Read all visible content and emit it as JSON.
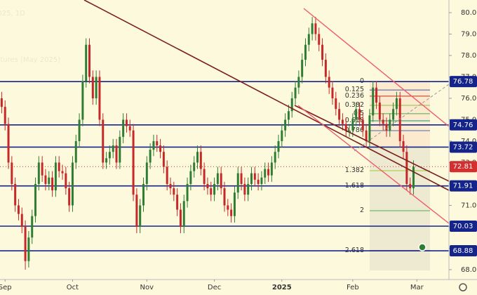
{
  "chart_data": {
    "type": "candlestick",
    "watermark": [
      "2025, 1D",
      "utures (May 2025)"
    ],
    "xlim": [
      -0.5,
      132.5
    ],
    "ylim": [
      67.57,
      80.59
    ],
    "xticks": [
      {
        "value": 1,
        "label": "Sep"
      },
      {
        "value": 21,
        "label": "Oct"
      },
      {
        "value": 43,
        "label": "Nov"
      },
      {
        "value": 63,
        "label": "Dec"
      },
      {
        "value": 83,
        "label": "2025"
      },
      {
        "value": 104,
        "label": "Feb"
      },
      {
        "value": 123,
        "label": "Mar"
      }
    ],
    "yticks": [
      {
        "value": 68,
        "label": "68.00"
      },
      {
        "value": 69,
        "label": "69.00"
      },
      {
        "value": 70,
        "label": "70.00"
      },
      {
        "value": 71,
        "label": "71.00"
      },
      {
        "value": 72,
        "label": "72.00"
      },
      {
        "value": 73,
        "label": "73.00"
      },
      {
        "value": 74,
        "label": "74.00"
      },
      {
        "value": 75,
        "label": "75.00"
      },
      {
        "value": 76,
        "label": "76.00"
      },
      {
        "value": 77,
        "label": "77.00"
      },
      {
        "value": 78,
        "label": "78.00"
      },
      {
        "value": 79,
        "label": "79.00"
      },
      {
        "value": 80,
        "label": "80.00"
      }
    ],
    "up_color": "#2e7d32",
    "down_color": "#c62828",
    "levels": [
      76.78,
      74.76,
      73.72,
      71.91,
      70.03,
      68.88
    ],
    "level_color": "#14248a",
    "last_price": 72.81,
    "last_price_color": "#d32f2f",
    "fib_levels": [
      {
        "label": "0",
        "value": 76.79,
        "color": "#888888"
      },
      {
        "label": "0.125",
        "value": 76.39,
        "color": "#3f51b5"
      },
      {
        "label": "0.236",
        "value": 76.1,
        "color": "#c62828"
      },
      {
        "label": "0.382",
        "value": 75.67,
        "color": "#8bc34a"
      },
      {
        "label": "0.5",
        "value": 75.28,
        "color": "#4caf50"
      },
      {
        "label": "0.618",
        "value": 74.95,
        "color": "#009688"
      },
      {
        "label": "0.786",
        "value": 74.49,
        "color": "#3f6fb5"
      },
      {
        "label": "1.382",
        "value": 72.62,
        "color": "#9ccc3a"
      },
      {
        "label": "1.618",
        "value": 71.9,
        "color": "#3f51b5"
      },
      {
        "label": "2",
        "value": 70.75,
        "color": "#4caf50"
      },
      {
        "label": "2.618",
        "value": 68.89,
        "color": "#c62828"
      }
    ],
    "candles": [
      [
        76.0,
        76.3,
        75.3,
        75.6
      ],
      [
        75.6,
        75.9,
        74.5,
        74.8
      ],
      [
        74.8,
        75.1,
        72.7,
        73.0
      ],
      [
        73.0,
        73.3,
        71.7,
        72.0
      ],
      [
        72.0,
        72.3,
        70.7,
        71.0
      ],
      [
        71.0,
        71.3,
        70.3,
        70.6
      ],
      [
        70.6,
        70.9,
        69.7,
        70.0
      ],
      [
        70.0,
        70.3,
        68.0,
        68.4
      ],
      [
        68.4,
        69.8,
        68.1,
        69.5
      ],
      [
        69.5,
        70.8,
        69.2,
        70.5
      ],
      [
        70.5,
        72.3,
        70.2,
        72.0
      ],
      [
        72.0,
        73.3,
        71.7,
        73.0
      ],
      [
        73.0,
        73.3,
        72.1,
        72.4
      ],
      [
        72.4,
        72.7,
        71.7,
        72.0
      ],
      [
        72.0,
        72.6,
        71.7,
        72.3
      ],
      [
        72.3,
        72.6,
        71.4,
        71.7
      ],
      [
        71.7,
        73.3,
        71.4,
        73.0
      ],
      [
        73.0,
        73.3,
        72.3,
        72.6
      ],
      [
        72.6,
        72.9,
        72.2,
        72.5
      ],
      [
        72.5,
        72.8,
        71.5,
        71.8
      ],
      [
        71.8,
        72.1,
        70.7,
        71.0
      ],
      [
        71.0,
        73.3,
        70.7,
        73.0
      ],
      [
        73.0,
        74.3,
        72.7,
        74.0
      ],
      [
        74.0,
        75.3,
        73.7,
        75.0
      ],
      [
        75.0,
        77.1,
        74.7,
        76.8
      ],
      [
        76.8,
        78.8,
        76.5,
        78.5
      ],
      [
        78.5,
        78.8,
        76.7,
        77.0
      ],
      [
        77.0,
        77.3,
        75.7,
        76.0
      ],
      [
        76.0,
        77.3,
        75.7,
        77.0
      ],
      [
        77.0,
        77.3,
        74.7,
        75.0
      ],
      [
        75.0,
        75.3,
        72.7,
        73.0
      ],
      [
        73.0,
        73.5,
        72.7,
        73.2
      ],
      [
        73.2,
        73.8,
        72.9,
        73.5
      ],
      [
        73.5,
        74.1,
        73.2,
        73.8
      ],
      [
        73.8,
        74.1,
        72.7,
        73.0
      ],
      [
        73.0,
        74.5,
        72.7,
        74.2
      ],
      [
        74.2,
        75.3,
        73.9,
        75.0
      ],
      [
        75.0,
        75.3,
        74.4,
        74.7
      ],
      [
        74.7,
        75.0,
        74.2,
        74.5
      ],
      [
        74.5,
        74.8,
        71.2,
        71.5
      ],
      [
        71.5,
        71.8,
        69.7,
        70.0
      ],
      [
        70.0,
        71.3,
        69.7,
        71.0
      ],
      [
        71.0,
        72.3,
        70.7,
        72.0
      ],
      [
        72.0,
        73.3,
        71.7,
        73.0
      ],
      [
        73.0,
        73.9,
        72.7,
        73.6
      ],
      [
        73.6,
        74.3,
        73.3,
        74.0
      ],
      [
        74.0,
        74.3,
        73.5,
        73.8
      ],
      [
        73.8,
        74.1,
        73.2,
        73.5
      ],
      [
        73.5,
        73.8,
        72.5,
        72.8
      ],
      [
        72.8,
        73.1,
        71.7,
        72.0
      ],
      [
        72.0,
        72.3,
        71.5,
        71.8
      ],
      [
        71.8,
        72.1,
        71.2,
        71.5
      ],
      [
        71.5,
        71.8,
        70.5,
        70.8
      ],
      [
        70.8,
        71.1,
        69.7,
        70.0
      ],
      [
        70.0,
        71.5,
        69.7,
        71.2
      ],
      [
        71.2,
        72.3,
        70.9,
        72.0
      ],
      [
        72.0,
        72.9,
        71.7,
        72.6
      ],
      [
        72.6,
        73.3,
        72.3,
        73.0
      ],
      [
        73.0,
        73.8,
        72.7,
        73.5
      ],
      [
        73.5,
        73.8,
        72.4,
        72.7
      ],
      [
        72.7,
        73.0,
        71.7,
        72.0
      ],
      [
        72.0,
        72.3,
        71.5,
        71.8
      ],
      [
        71.8,
        72.1,
        71.2,
        71.5
      ],
      [
        71.5,
        72.3,
        71.2,
        72.0
      ],
      [
        72.0,
        72.8,
        71.7,
        72.5
      ],
      [
        72.5,
        72.8,
        71.5,
        71.8
      ],
      [
        71.8,
        72.1,
        70.7,
        71.0
      ],
      [
        71.0,
        71.3,
        70.5,
        70.8
      ],
      [
        70.8,
        71.1,
        70.2,
        70.5
      ],
      [
        70.5,
        71.9,
        70.2,
        71.6
      ],
      [
        71.6,
        72.8,
        71.3,
        72.5
      ],
      [
        72.5,
        72.8,
        71.7,
        72.0
      ],
      [
        72.0,
        72.3,
        71.2,
        71.5
      ],
      [
        71.5,
        72.3,
        71.2,
        72.0
      ],
      [
        72.0,
        72.8,
        71.7,
        72.5
      ],
      [
        72.5,
        72.8,
        71.9,
        72.2
      ],
      [
        72.2,
        72.5,
        71.7,
        72.0
      ],
      [
        72.0,
        72.6,
        71.7,
        72.3
      ],
      [
        72.3,
        73.0,
        72.0,
        72.7
      ],
      [
        72.7,
        73.0,
        72.1,
        72.4
      ],
      [
        72.4,
        73.3,
        72.1,
        73.0
      ],
      [
        73.0,
        73.8,
        72.7,
        73.5
      ],
      [
        73.5,
        74.3,
        73.2,
        74.0
      ],
      [
        74.0,
        74.8,
        73.7,
        74.5
      ],
      [
        74.5,
        75.3,
        74.2,
        75.0
      ],
      [
        75.0,
        75.7,
        74.7,
        75.4
      ],
      [
        75.4,
        76.3,
        75.1,
        76.0
      ],
      [
        76.0,
        76.8,
        75.7,
        76.5
      ],
      [
        76.5,
        77.3,
        76.2,
        77.0
      ],
      [
        77.0,
        78.1,
        76.7,
        77.8
      ],
      [
        77.8,
        78.8,
        77.5,
        78.5
      ],
      [
        78.5,
        79.3,
        78.2,
        79.0
      ],
      [
        79.0,
        79.8,
        78.7,
        79.5
      ],
      [
        79.5,
        79.8,
        78.7,
        79.0
      ],
      [
        79.0,
        79.3,
        78.2,
        78.5
      ],
      [
        78.5,
        78.8,
        77.5,
        77.8
      ],
      [
        77.8,
        78.1,
        76.7,
        77.0
      ],
      [
        77.0,
        77.3,
        76.2,
        76.5
      ],
      [
        76.5,
        76.8,
        75.7,
        76.0
      ],
      [
        76.0,
        76.3,
        75.2,
        75.5
      ],
      [
        75.5,
        75.8,
        74.7,
        75.0
      ],
      [
        75.0,
        75.3,
        74.5,
        74.8
      ],
      [
        74.8,
        75.1,
        74.2,
        74.5
      ],
      [
        74.5,
        74.8,
        74.2,
        74.5
      ],
      [
        74.5,
        75.3,
        74.2,
        75.0
      ],
      [
        75.0,
        75.8,
        74.7,
        75.5
      ],
      [
        75.5,
        75.8,
        74.7,
        75.0
      ],
      [
        75.0,
        75.3,
        74.2,
        74.5
      ],
      [
        74.5,
        74.8,
        73.7,
        74.0
      ],
      [
        74.0,
        75.5,
        73.7,
        75.2
      ],
      [
        75.2,
        76.8,
        74.9,
        76.5
      ],
      [
        76.5,
        76.8,
        75.5,
        75.8
      ],
      [
        75.8,
        76.1,
        74.7,
        75.0
      ],
      [
        75.0,
        75.3,
        74.5,
        74.8
      ],
      [
        74.8,
        75.1,
        74.2,
        74.5
      ],
      [
        74.5,
        75.3,
        74.2,
        75.0
      ],
      [
        75.0,
        75.8,
        74.7,
        75.5
      ],
      [
        75.5,
        76.3,
        75.2,
        76.0
      ],
      [
        76.0,
        76.3,
        73.7,
        74.0
      ],
      [
        74.0,
        74.3,
        73.2,
        73.5
      ],
      [
        73.5,
        73.8,
        71.7,
        72.0
      ],
      [
        72.0,
        72.3,
        71.5,
        71.8
      ],
      [
        71.8,
        73.1,
        71.5,
        72.81
      ]
    ]
  }
}
